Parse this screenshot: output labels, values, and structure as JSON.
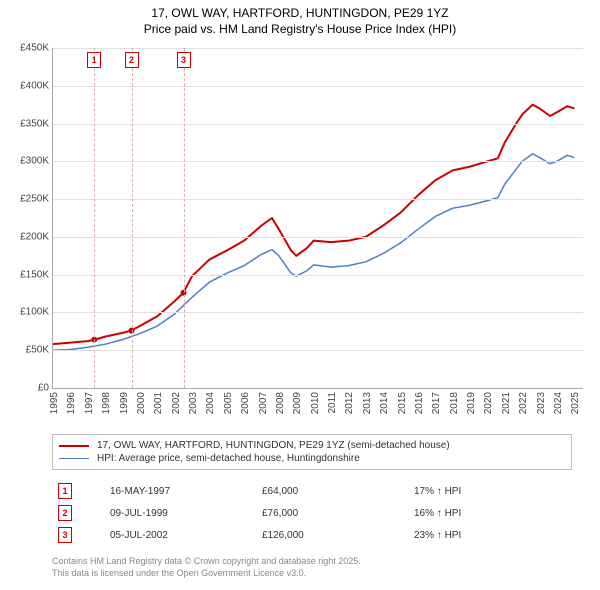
{
  "title_line1": "17, OWL WAY, HARTFORD, HUNTINGDON, PE29 1YZ",
  "title_line2": "Price paid vs. HM Land Registry's House Price Index (HPI)",
  "chart": {
    "type": "line",
    "x_min_year": 1995,
    "x_max_year": 2025.5,
    "y_min": 0,
    "y_max": 450000,
    "y_ticks": [
      0,
      50000,
      100000,
      150000,
      200000,
      250000,
      300000,
      350000,
      400000,
      450000
    ],
    "y_tick_labels": [
      "£0",
      "£50K",
      "£100K",
      "£150K",
      "£200K",
      "£250K",
      "£300K",
      "£350K",
      "£400K",
      "£450K"
    ],
    "x_ticks": [
      1995,
      1996,
      1997,
      1998,
      1999,
      2000,
      2001,
      2002,
      2003,
      2004,
      2005,
      2006,
      2007,
      2008,
      2009,
      2010,
      2011,
      2012,
      2013,
      2014,
      2015,
      2016,
      2017,
      2018,
      2019,
      2020,
      2021,
      2022,
      2023,
      2024,
      2025
    ],
    "grid_color": "#e0e0e0",
    "background_color": "#ffffff",
    "axis_color": "#aaaaaa",
    "label_fontsize": 10,
    "label_color": "#444444",
    "vline_color": "#d8b0b0",
    "series": [
      {
        "name": "price_paid",
        "label": "17, OWL WAY, HARTFORD, HUNTINGDON, PE29 1YZ (semi-detached house)",
        "color": "#cc0000",
        "line_width": 2,
        "points": [
          [
            1995,
            58000
          ],
          [
            1996,
            60000
          ],
          [
            1997,
            62000
          ],
          [
            1997.4,
            64000
          ],
          [
            1998,
            68000
          ],
          [
            1999,
            73000
          ],
          [
            1999.5,
            76000
          ],
          [
            2000,
            82000
          ],
          [
            2001,
            95000
          ],
          [
            2002,
            115000
          ],
          [
            2002.5,
            126000
          ],
          [
            2003,
            148000
          ],
          [
            2004,
            170000
          ],
          [
            2005,
            182000
          ],
          [
            2006,
            195000
          ],
          [
            2007,
            215000
          ],
          [
            2007.6,
            225000
          ],
          [
            2008,
            210000
          ],
          [
            2008.7,
            182000
          ],
          [
            2009,
            175000
          ],
          [
            2009.6,
            185000
          ],
          [
            2010,
            195000
          ],
          [
            2011,
            193000
          ],
          [
            2012,
            195000
          ],
          [
            2013,
            200000
          ],
          [
            2014,
            215000
          ],
          [
            2015,
            232000
          ],
          [
            2016,
            255000
          ],
          [
            2017,
            275000
          ],
          [
            2018,
            288000
          ],
          [
            2019,
            293000
          ],
          [
            2020,
            300000
          ],
          [
            2020.6,
            304000
          ],
          [
            2021,
            325000
          ],
          [
            2021.6,
            348000
          ],
          [
            2022,
            362000
          ],
          [
            2022.6,
            375000
          ],
          [
            2023,
            370000
          ],
          [
            2023.6,
            360000
          ],
          [
            2024,
            365000
          ],
          [
            2024.6,
            373000
          ],
          [
            2025,
            370000
          ]
        ]
      },
      {
        "name": "hpi",
        "label": "HPI: Average price, semi-detached house, Huntingdonshire",
        "color": "#5080c0",
        "line_width": 1.5,
        "points": [
          [
            1995,
            50000
          ],
          [
            1996,
            51000
          ],
          [
            1997,
            54000
          ],
          [
            1998,
            58000
          ],
          [
            1999,
            64000
          ],
          [
            2000,
            72000
          ],
          [
            2001,
            82000
          ],
          [
            2002,
            98000
          ],
          [
            2003,
            120000
          ],
          [
            2004,
            140000
          ],
          [
            2005,
            152000
          ],
          [
            2006,
            162000
          ],
          [
            2007,
            177000
          ],
          [
            2007.6,
            183000
          ],
          [
            2008,
            175000
          ],
          [
            2008.7,
            152000
          ],
          [
            2009,
            148000
          ],
          [
            2009.6,
            155000
          ],
          [
            2010,
            163000
          ],
          [
            2011,
            160000
          ],
          [
            2012,
            162000
          ],
          [
            2013,
            167000
          ],
          [
            2014,
            178000
          ],
          [
            2015,
            192000
          ],
          [
            2016,
            210000
          ],
          [
            2017,
            227000
          ],
          [
            2018,
            238000
          ],
          [
            2019,
            242000
          ],
          [
            2020,
            248000
          ],
          [
            2020.6,
            252000
          ],
          [
            2021,
            270000
          ],
          [
            2021.6,
            288000
          ],
          [
            2022,
            300000
          ],
          [
            2022.6,
            310000
          ],
          [
            2023,
            305000
          ],
          [
            2023.6,
            297000
          ],
          [
            2024,
            300000
          ],
          [
            2024.6,
            308000
          ],
          [
            2025,
            305000
          ]
        ]
      }
    ],
    "markers": [
      {
        "n": "1",
        "year": 1997.37,
        "price": 64000
      },
      {
        "n": "2",
        "year": 1999.52,
        "price": 76000
      },
      {
        "n": "3",
        "year": 2002.51,
        "price": 126000
      }
    ]
  },
  "legend": {
    "border_color": "#bbbbbb"
  },
  "events": [
    {
      "n": "1",
      "date": "16-MAY-1997",
      "price": "£64,000",
      "hpi": "17% ↑ HPI"
    },
    {
      "n": "2",
      "date": "09-JUL-1999",
      "price": "£76,000",
      "hpi": "16% ↑ HPI"
    },
    {
      "n": "3",
      "date": "05-JUL-2002",
      "price": "£126,000",
      "hpi": "23% ↑ HPI"
    }
  ],
  "footer_line1": "Contains HM Land Registry data © Crown copyright and database right 2025.",
  "footer_line2": "This data is licensed under the Open Government Licence v3.0.",
  "currency_prefix": "£"
}
